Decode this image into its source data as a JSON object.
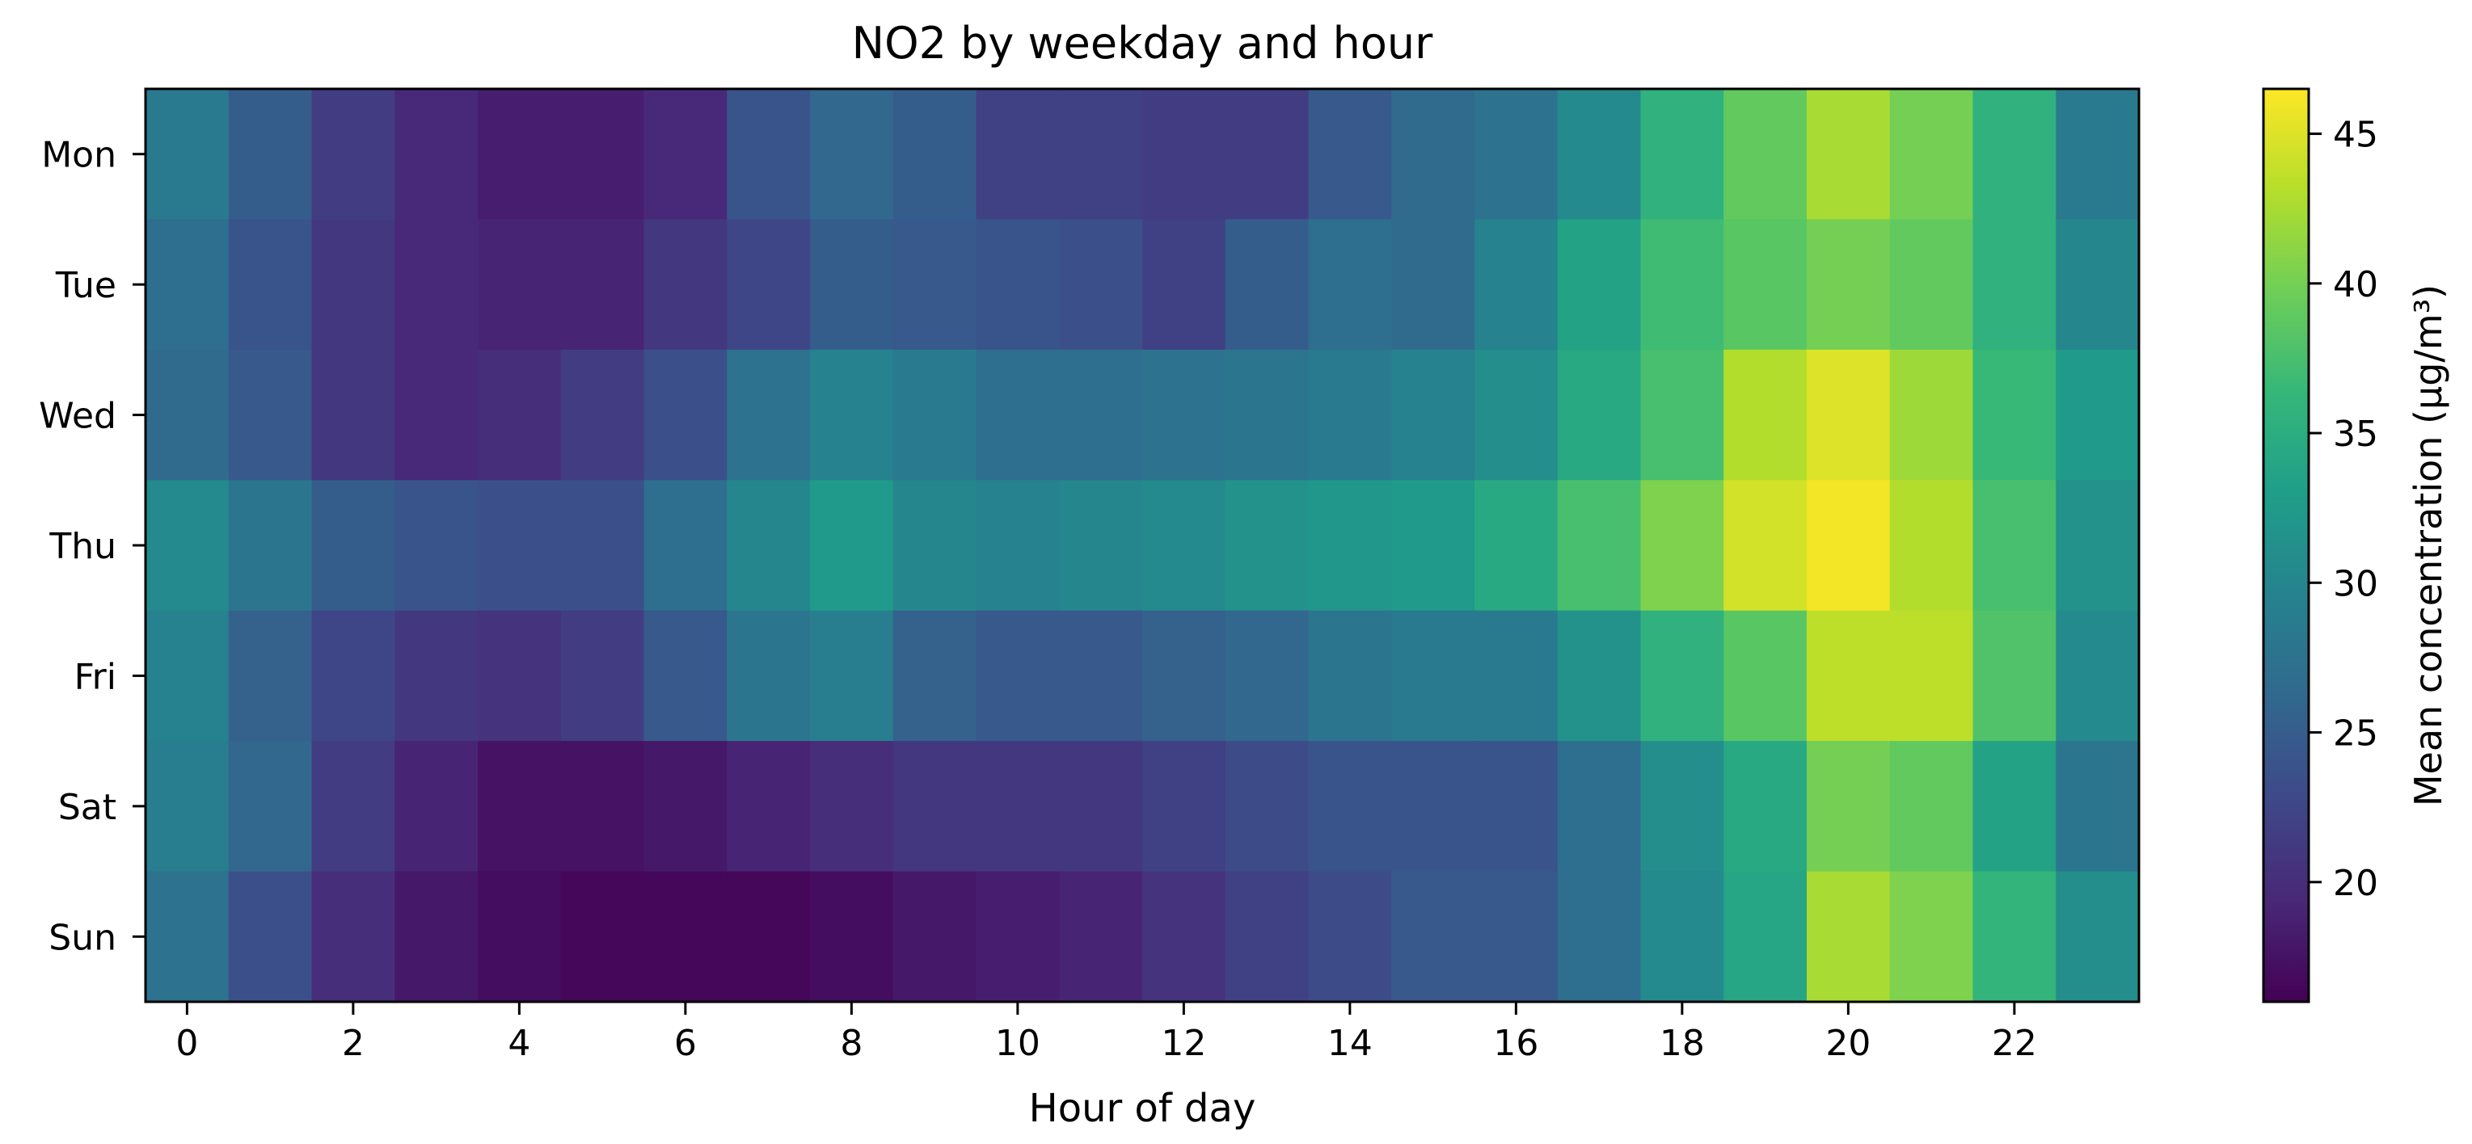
{
  "chart_data": {
    "type": "heatmap",
    "title": "NO2 by weekday and hour",
    "xlabel": "Hour of day",
    "ylabel": "",
    "x": [
      0,
      1,
      2,
      3,
      4,
      5,
      6,
      7,
      8,
      9,
      10,
      11,
      12,
      13,
      14,
      15,
      16,
      17,
      18,
      19,
      20,
      21,
      22,
      23
    ],
    "x_ticks": [
      "0",
      "2",
      "4",
      "6",
      "8",
      "10",
      "12",
      "14",
      "16",
      "18",
      "20",
      "22"
    ],
    "y": [
      "Mon",
      "Tue",
      "Wed",
      "Thu",
      "Fri",
      "Sat",
      "Sun"
    ],
    "values": [
      [
        28.5,
        25.0,
        21.5,
        19.5,
        18.5,
        18.5,
        19.5,
        24.0,
        26.0,
        25.0,
        22.0,
        22.0,
        21.5,
        21.5,
        24.5,
        26.5,
        27.5,
        30.5,
        35.5,
        39.0,
        42.5,
        40.0,
        35.5,
        28.5
      ],
      [
        27.0,
        24.0,
        21.0,
        19.5,
        19.0,
        19.0,
        21.0,
        22.5,
        25.0,
        24.5,
        24.0,
        23.5,
        22.0,
        25.0,
        27.0,
        26.5,
        29.5,
        33.5,
        37.0,
        38.5,
        40.0,
        39.0,
        35.5,
        30.0
      ],
      [
        26.5,
        24.5,
        21.0,
        19.5,
        20.0,
        21.5,
        23.5,
        27.5,
        29.5,
        28.5,
        27.0,
        27.0,
        27.5,
        28.0,
        28.5,
        29.5,
        31.0,
        34.5,
        37.5,
        43.0,
        45.0,
        42.0,
        36.5,
        32.5
      ],
      [
        30.5,
        28.0,
        25.0,
        24.0,
        23.5,
        23.5,
        27.0,
        30.0,
        32.5,
        30.0,
        29.5,
        30.0,
        30.5,
        31.5,
        32.0,
        32.5,
        34.5,
        37.5,
        40.5,
        44.5,
        46.0,
        43.0,
        37.5,
        31.5
      ],
      [
        29.5,
        25.5,
        22.5,
        21.0,
        20.5,
        21.5,
        24.5,
        28.0,
        29.0,
        25.5,
        24.5,
        24.5,
        25.5,
        26.0,
        28.0,
        28.5,
        28.5,
        31.5,
        35.5,
        38.5,
        43.5,
        43.5,
        38.0,
        30.5
      ],
      [
        29.0,
        26.0,
        21.5,
        19.0,
        17.5,
        17.5,
        18.0,
        19.0,
        20.0,
        21.0,
        21.0,
        21.0,
        22.0,
        23.0,
        24.0,
        24.0,
        24.0,
        27.0,
        31.0,
        34.5,
        40.0,
        39.0,
        33.5,
        28.0
      ],
      [
        27.5,
        23.5,
        20.0,
        18.0,
        17.0,
        16.5,
        16.5,
        16.5,
        17.0,
        18.0,
        18.5,
        19.0,
        20.5,
        22.0,
        23.0,
        24.5,
        24.5,
        27.0,
        30.5,
        34.0,
        42.5,
        40.5,
        36.0,
        31.0
      ]
    ],
    "colorbar": {
      "label": "Mean concentration (µg/m³)",
      "range": [
        16,
        46.5
      ],
      "ticks": [
        20,
        25,
        30,
        35,
        40,
        45
      ],
      "colormap": "viridis"
    },
    "grid": false,
    "legend": "none"
  }
}
